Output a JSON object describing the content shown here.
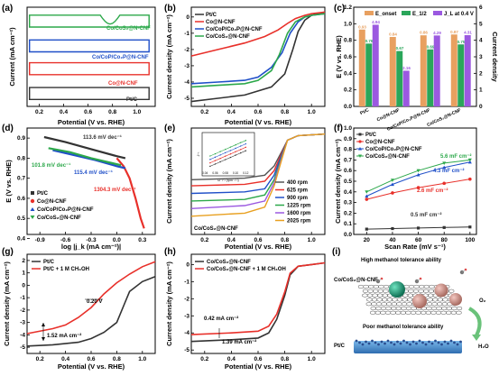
{
  "panel_labels": [
    "(a)",
    "(b)",
    "(c)",
    "(d)",
    "(e)",
    "(f)",
    "(g)",
    "(h)",
    "(i)"
  ],
  "colors": {
    "ptc": "#333333",
    "co_ncnf": "#e8302a",
    "cop": "#1f4fc8",
    "cos2": "#2ca84a",
    "eonset": "#e8a060",
    "e12": "#2aa65a",
    "jl": "#9b59e0",
    "rpm400": "#555555",
    "rpm625": "#e8302a",
    "rpm900": "#1f4fc8",
    "rpm1225": "#2ca84a",
    "rpm1600": "#9b59e0",
    "rpm2025": "#e8a020"
  },
  "chart_data": [
    {
      "panel": "(a)",
      "type": "line",
      "xlabel": "Potential (V vs. RHE)",
      "ylabel": "Current (mA cm⁻²)",
      "xticks": [
        "0.2",
        "0.4",
        "0.6",
        "0.8",
        "1.0"
      ],
      "xlim": [
        0.1,
        1.15
      ],
      "series": [
        {
          "name": "Co/CoS₂@N-CNF",
          "color": "#2ca84a"
        },
        {
          "name": "Co/CoP/Co₂P@N-CNF",
          "color": "#1f4fc8"
        },
        {
          "name": "Co@N-CNF",
          "color": "#e8302a"
        },
        {
          "name": "Pt/C",
          "color": "#333333"
        }
      ]
    },
    {
      "panel": "(b)",
      "type": "line",
      "xlabel": "Potential (V vs. RHE)",
      "ylabel": "Current density (mA cm⁻²)",
      "xticks": [
        "0.2",
        "0.4",
        "0.6",
        "0.8",
        "1.0"
      ],
      "yticks": [
        "0",
        "-1",
        "-2",
        "-3",
        "-4",
        "-5"
      ],
      "xlim": [
        0.1,
        1.1
      ],
      "ylim": [
        -5.5,
        0.6
      ],
      "series": [
        {
          "name": "Pt/C",
          "color": "#333333",
          "x": [
            0.1,
            0.3,
            0.5,
            0.7,
            0.8,
            0.86,
            0.9,
            0.95,
            1.0,
            1.05,
            1.1
          ],
          "y": [
            -5.2,
            -5.0,
            -4.8,
            -4.3,
            -3.5,
            -2.0,
            -0.9,
            -0.2,
            0.1,
            0.2,
            0.3
          ]
        },
        {
          "name": "Co@N-CNF",
          "color": "#e8302a",
          "x": [
            0.1,
            0.3,
            0.5,
            0.65,
            0.75,
            0.82,
            0.88,
            0.95,
            1.0,
            1.1
          ],
          "y": [
            -2.4,
            -2.0,
            -1.6,
            -1.2,
            -0.8,
            -0.4,
            -0.1,
            0.1,
            0.2,
            0.3
          ]
        },
        {
          "name": "Co/CoP/Co₂P@N-CNF",
          "color": "#1f4fc8",
          "x": [
            0.1,
            0.3,
            0.5,
            0.6,
            0.7,
            0.78,
            0.84,
            0.9,
            0.95,
            1.0,
            1.1
          ],
          "y": [
            -4.1,
            -4.0,
            -3.9,
            -3.7,
            -3.1,
            -2.2,
            -1.0,
            -0.3,
            0.0,
            0.1,
            0.2
          ]
        },
        {
          "name": "Co/CoS₂@N-CNF",
          "color": "#2ca84a",
          "x": [
            0.1,
            0.3,
            0.5,
            0.6,
            0.7,
            0.76,
            0.82,
            0.88,
            0.95,
            1.0,
            1.1
          ],
          "y": [
            -4.3,
            -4.2,
            -4.1,
            -3.9,
            -3.3,
            -2.3,
            -1.0,
            -0.3,
            0.0,
            0.1,
            0.2
          ]
        }
      ]
    },
    {
      "panel": "(c)",
      "type": "bar",
      "ylabel": "E (V vs. RHE)",
      "ylabel_right": "Current density",
      "categories": [
        "Pt/C",
        "Co@N-CNF",
        "Co/CoP/Co₂P@N-CNF",
        "Co/CoS₂@N-CNF"
      ],
      "yticks": [
        "0.0",
        "0.2",
        "0.4",
        "0.6",
        "0.8",
        "1.0",
        "1.2"
      ],
      "yticks_right": [
        "0",
        "1",
        "2",
        "3",
        "4",
        "5",
        "6"
      ],
      "ylim": [
        0,
        1.2
      ],
      "ylim_right": [
        0,
        6
      ],
      "series": [
        {
          "name": "E_onset",
          "color": "#e8a060",
          "values": [
            0.93,
            0.84,
            0.86,
            0.87
          ]
        },
        {
          "name": "E_1/2",
          "color": "#2aa65a",
          "values": [
            0.76,
            0.67,
            0.69,
            0.75
          ]
        },
        {
          "name": "J_L at 0.4 V",
          "color": "#9b59e0",
          "values": [
            4.94,
            2.16,
            4.29,
            4.31
          ]
        }
      ]
    },
    {
      "panel": "(d)",
      "type": "line",
      "xlabel": "log |j_k (mA cm⁻²)|",
      "ylabel": "E (V vs. RHE)",
      "xticks": [
        "-0.9",
        "-0.6",
        "-0.3",
        "0.0",
        "0.3"
      ],
      "yticks": [
        "0.4",
        "0.5",
        "0.6",
        "0.7",
        "0.8",
        "0.9"
      ],
      "xlim": [
        -1.05,
        0.45
      ],
      "ylim": [
        0.42,
        0.95
      ],
      "series": [
        {
          "name": "Pt/C",
          "color": "#333333",
          "slope": "113.6 mV dec⁻¹",
          "x": [
            -0.85,
            -0.6,
            -0.3,
            0.0,
            0.1
          ],
          "y": [
            0.905,
            0.88,
            0.845,
            0.81,
            0.8
          ]
        },
        {
          "name": "Co@N-CNF",
          "color": "#e8302a",
          "slope": "1304.3 mV dec⁻¹",
          "x": [
            0.0,
            0.08,
            0.15,
            0.22,
            0.28,
            0.32
          ],
          "y": [
            0.8,
            0.76,
            0.7,
            0.6,
            0.5,
            0.45
          ]
        },
        {
          "name": "Co/CoP/Co₂P@N-CNF",
          "color": "#1f4fc8",
          "slope": "115.4 mV dec⁻¹",
          "x": [
            -0.75,
            -0.5,
            -0.25,
            0.0,
            0.1
          ],
          "y": [
            0.84,
            0.815,
            0.79,
            0.76,
            0.75
          ]
        },
        {
          "name": "Co/CoS₂@N-CNF",
          "color": "#2ca84a",
          "slope": "101.8 mV dec⁻¹",
          "x": [
            -0.8,
            -0.55,
            -0.3,
            -0.05,
            0.05
          ],
          "y": [
            0.85,
            0.83,
            0.8,
            0.775,
            0.765
          ]
        }
      ]
    },
    {
      "panel": "(e)",
      "type": "line",
      "title": "Co/CoS₂@N-CNF",
      "xlabel": "Potential (V vs. RHE)",
      "ylabel": "Current density (mA cm⁻²)",
      "xticks": [
        "0.2",
        "0.4",
        "0.6",
        "0.8",
        "1.0"
      ],
      "xlim": [
        0.1,
        1.1
      ],
      "ylim": [
        -6.5,
        0.5
      ],
      "series": [
        {
          "name": "400 rpm",
          "color": "#555555",
          "x": [
            0.1,
            0.5,
            0.65,
            0.72,
            0.78,
            0.82,
            0.9,
            1.1
          ],
          "y": [
            -2.9,
            -2.8,
            -2.6,
            -2.0,
            -1.0,
            -0.3,
            0.0,
            0.1
          ]
        },
        {
          "name": "625 rpm",
          "color": "#e8302a",
          "x": [
            0.1,
            0.5,
            0.65,
            0.72,
            0.78,
            0.82,
            0.9,
            1.1
          ],
          "y": [
            -3.3,
            -3.2,
            -3.0,
            -2.3,
            -1.1,
            -0.3,
            0.0,
            0.1
          ]
        },
        {
          "name": "900 rpm",
          "color": "#1f4fc8",
          "x": [
            0.1,
            0.5,
            0.65,
            0.72,
            0.78,
            0.82,
            0.9,
            1.1
          ],
          "y": [
            -3.8,
            -3.7,
            -3.5,
            -2.6,
            -1.2,
            -0.3,
            0.0,
            0.1
          ]
        },
        {
          "name": "1225 rpm",
          "color": "#2ca84a",
          "x": [
            0.1,
            0.5,
            0.65,
            0.72,
            0.78,
            0.82,
            0.9,
            1.1
          ],
          "y": [
            -4.3,
            -4.2,
            -3.9,
            -2.9,
            -1.3,
            -0.3,
            0.0,
            0.1
          ]
        },
        {
          "name": "1600 rpm",
          "color": "#9b59e0",
          "x": [
            0.1,
            0.5,
            0.65,
            0.72,
            0.78,
            0.82,
            0.9,
            1.1
          ],
          "y": [
            -4.8,
            -4.6,
            -4.3,
            -3.1,
            -1.4,
            -0.3,
            0.0,
            0.1
          ]
        },
        {
          "name": "2025 rpm",
          "color": "#e8a020",
          "x": [
            0.1,
            0.5,
            0.65,
            0.72,
            0.78,
            0.82,
            0.9,
            1.1
          ],
          "y": [
            -5.3,
            -5.1,
            -4.7,
            -3.3,
            -1.5,
            -0.3,
            0.0,
            0.1
          ]
        }
      ],
      "inset": {
        "xlabel": "ω⁻¹ᐟ² (rpm⁻¹ᐟ²)",
        "ylabel": "J⁻¹",
        "xticks": [
          "0.04",
          "0.06",
          "0.08",
          "0.10",
          "0.12"
        ]
      }
    },
    {
      "panel": "(f)",
      "type": "scatter",
      "xlabel": "Scan Rate (mV s⁻¹)",
      "ylabel": "Current density (mA cm⁻²)",
      "xticks": [
        "20",
        "40",
        "60",
        "80",
        "100"
      ],
      "yticks": [
        "0.0",
        "0.1",
        "0.2",
        "0.3",
        "0.4",
        "0.5",
        "0.6",
        "0.7",
        "0.8",
        "0.9",
        "1.0"
      ],
      "xlim": [
        10,
        105
      ],
      "ylim": [
        0,
        1.0
      ],
      "series": [
        {
          "name": "Pt/C",
          "color": "#333333",
          "label": "0.5 mF cm⁻²",
          "x": [
            20,
            40,
            60,
            80,
            100
          ],
          "y": [
            0.05,
            0.055,
            0.06,
            0.065,
            0.07
          ]
        },
        {
          "name": "Co@N-CNF",
          "color": "#e8302a",
          "label": "2.6 mF cm⁻²",
          "x": [
            20,
            40,
            60,
            80,
            100
          ],
          "y": [
            0.33,
            0.39,
            0.44,
            0.48,
            0.52
          ]
        },
        {
          "name": "Co/CoP/Co₂P@N-CNF",
          "color": "#1f4fc8",
          "label": "4.3 mF cm⁻²",
          "x": [
            20,
            40,
            60,
            80,
            100
          ],
          "y": [
            0.36,
            0.47,
            0.56,
            0.63,
            0.68
          ]
        },
        {
          "name": "Co/CoS₂@N-CNF",
          "color": "#2ca84a",
          "label": "5.6 mF cm⁻²",
          "x": [
            20,
            40,
            60,
            80,
            100
          ],
          "y": [
            0.4,
            0.51,
            0.6,
            0.67,
            0.7
          ]
        }
      ]
    },
    {
      "panel": "(g)",
      "type": "line",
      "xlabel": "Potential (V vs. RHE)",
      "ylabel": "Current density (mA cm⁻²)",
      "xticks": [
        "0.2",
        "0.4",
        "0.6",
        "0.8",
        "1.0"
      ],
      "yticks": [
        "2",
        "1",
        "0",
        "-1",
        "-2",
        "-3",
        "-4",
        "-5"
      ],
      "xlim": [
        0.1,
        1.1
      ],
      "ylim": [
        -5.5,
        2.5
      ],
      "annotations": [
        "0.20 V",
        "1.52 mA cm⁻²"
      ],
      "series": [
        {
          "name": "Pt/C",
          "color": "#333333",
          "x": [
            0.1,
            0.3,
            0.5,
            0.6,
            0.7,
            0.8,
            0.86,
            0.9,
            1.0,
            1.1
          ],
          "y": [
            -4.9,
            -4.8,
            -4.6,
            -4.3,
            -3.8,
            -3.0,
            -1.5,
            -0.5,
            0.3,
            0.7
          ]
        },
        {
          "name": "Pt/C + 1 M CH₃OH",
          "color": "#e8302a",
          "x": [
            0.1,
            0.3,
            0.4,
            0.5,
            0.6,
            0.7,
            0.8,
            0.9,
            1.0,
            1.1
          ],
          "y": [
            -3.9,
            -3.5,
            -3.2,
            -2.6,
            -1.8,
            -0.7,
            0.2,
            0.9,
            1.5,
            1.9
          ]
        }
      ]
    },
    {
      "panel": "(h)",
      "type": "line",
      "xlabel": "Potential (V vs. RHE)",
      "ylabel": "Current density (mA cm⁻²)",
      "xticks": [
        "0.2",
        "0.4",
        "0.6",
        "0.8",
        "1.0"
      ],
      "yticks": [
        "0",
        "-1",
        "-2",
        "-3",
        "-4",
        "-5"
      ],
      "xlim": [
        0.1,
        1.1
      ],
      "ylim": [
        -5.2,
        0.6
      ],
      "annotations": [
        "0.42 mA cm⁻²",
        "1.39 mA cm⁻²"
      ],
      "series": [
        {
          "name": "Co/CoS₂@N-CNF",
          "color": "#333333",
          "x": [
            0.1,
            0.4,
            0.6,
            0.68,
            0.74,
            0.8,
            0.84,
            0.9,
            1.0,
            1.1
          ],
          "y": [
            -4.5,
            -4.4,
            -4.3,
            -4.0,
            -3.2,
            -1.8,
            -0.6,
            -0.1,
            0.0,
            0.1
          ]
        },
        {
          "name": "Co/CoS₂@N-CNF + 1 M CH₃OH",
          "color": "#e8302a",
          "x": [
            0.1,
            0.4,
            0.6,
            0.68,
            0.74,
            0.8,
            0.84,
            0.9,
            1.0,
            1.1
          ],
          "y": [
            -4.1,
            -4.0,
            -3.9,
            -3.6,
            -2.9,
            -1.6,
            -0.5,
            -0.1,
            0.0,
            0.1
          ]
        }
      ]
    }
  ],
  "panel_i": {
    "title_top": "High methanol tolerance ability",
    "label_left": "Co/CoS₂@N-CNF",
    "title_bottom": "Poor methanol tolerance ability",
    "label_bottom": "Pt/C",
    "label_o2": "O₂",
    "label_h2o": "H₂O"
  }
}
